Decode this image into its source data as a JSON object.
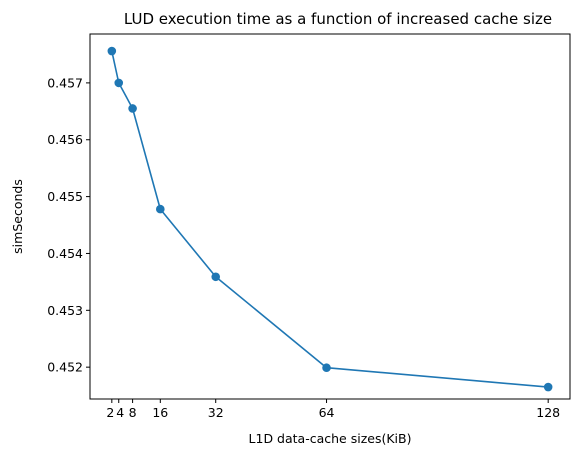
{
  "chart_data": {
    "type": "line",
    "title": "LUD execution time as a function of increased cache size",
    "xlabel": "L1D data-cache sizes(KiB)",
    "ylabel": "simSeconds",
    "xticks": [
      2,
      4,
      8,
      16,
      32,
      64,
      128
    ],
    "xtick_labels": [
      "2",
      "4",
      "8",
      "16",
      "32",
      "64",
      "128"
    ],
    "yticks": [
      0.452,
      0.453,
      0.454,
      0.455,
      0.456,
      0.457
    ],
    "ytick_labels": [
      "0.452",
      "0.453",
      "0.454",
      "0.455",
      "0.456",
      "0.457"
    ],
    "xlim": [
      -4.3,
      134.3
    ],
    "ylim": [
      0.45144,
      0.45786
    ],
    "grid": false,
    "series": [
      {
        "x": [
          2,
          4,
          8,
          16,
          32,
          64,
          128
        ],
        "y": [
          0.45756,
          0.457,
          0.45655,
          0.45478,
          0.45359,
          0.45199,
          0.45165
        ],
        "color": "#1f77b4",
        "marker": "circle"
      }
    ]
  }
}
